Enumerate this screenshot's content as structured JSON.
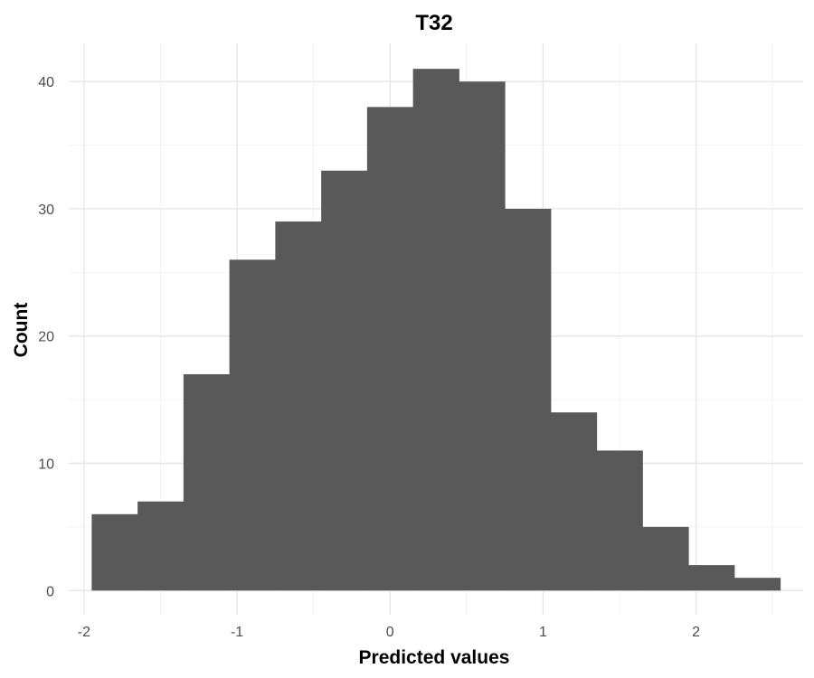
{
  "chart_data": {
    "type": "histogram",
    "title": "T32",
    "xlabel": "Predicted values",
    "ylabel": "Count",
    "bin_width": 0.3,
    "bins": [
      {
        "x0": -1.95,
        "x1": -1.65,
        "count": 6
      },
      {
        "x0": -1.65,
        "x1": -1.35,
        "count": 7
      },
      {
        "x0": -1.35,
        "x1": -1.05,
        "count": 17
      },
      {
        "x0": -1.05,
        "x1": -0.75,
        "count": 26
      },
      {
        "x0": -0.75,
        "x1": -0.45,
        "count": 29
      },
      {
        "x0": -0.45,
        "x1": -0.15,
        "count": 33
      },
      {
        "x0": -0.15,
        "x1": 0.15,
        "count": 38
      },
      {
        "x0": 0.15,
        "x1": 0.45,
        "count": 41
      },
      {
        "x0": 0.45,
        "x1": 0.75,
        "count": 40
      },
      {
        "x0": 0.75,
        "x1": 1.05,
        "count": 30
      },
      {
        "x0": 1.05,
        "x1": 1.35,
        "count": 14
      },
      {
        "x0": 1.35,
        "x1": 1.65,
        "count": 11
      },
      {
        "x0": 1.65,
        "x1": 1.95,
        "count": 5
      },
      {
        "x0": 1.95,
        "x1": 2.25,
        "count": 2
      },
      {
        "x0": 2.25,
        "x1": 2.55,
        "count": 1
      }
    ],
    "xlim": [
      -2.1,
      2.7
    ],
    "ylim": [
      -1.9,
      43
    ],
    "x_ticks": [
      -2,
      -1,
      0,
      1,
      2
    ],
    "x_tick_labels": [
      "-2",
      "-1",
      "0",
      "1",
      "2"
    ],
    "y_ticks": [
      0,
      10,
      20,
      30,
      40
    ],
    "y_tick_labels": [
      "0",
      "10",
      "20",
      "30",
      "40"
    ],
    "grid": true,
    "legend": "none",
    "colors": {
      "bar": "#595959",
      "background": "#ffffff",
      "grid_major": "#e6e6e6",
      "grid_minor": "#f0f0f0"
    }
  }
}
